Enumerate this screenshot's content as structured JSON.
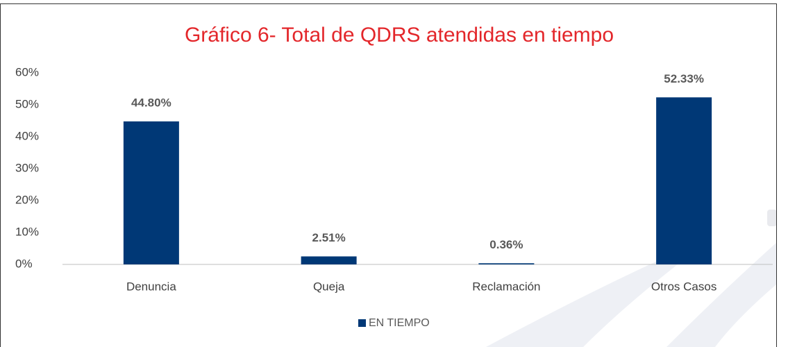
{
  "chart_data": {
    "type": "bar",
    "title": "Gráfico 6- Total de QDRS atendidas en tiempo",
    "categories": [
      "Denuncia",
      "Queja",
      "Reclamación",
      "Otros Casos"
    ],
    "series": [
      {
        "name": "EN TIEMPO",
        "color": "#003876",
        "values": [
          44.8,
          2.51,
          0.36,
          52.33
        ],
        "value_labels": [
          "44.80%",
          "2.51%",
          "0.36%",
          "52.33%"
        ]
      }
    ],
    "ylim": [
      0,
      60
    ],
    "yticks": [
      {
        "value": 0,
        "label": "0%"
      },
      {
        "value": 10,
        "label": "10%"
      },
      {
        "value": 20,
        "label": "20%"
      },
      {
        "value": 30,
        "label": "30%"
      },
      {
        "value": 40,
        "label": "40%"
      },
      {
        "value": 50,
        "label": "50%"
      },
      {
        "value": 60,
        "label": "60%"
      }
    ],
    "grid": false,
    "legend": "bottom"
  }
}
